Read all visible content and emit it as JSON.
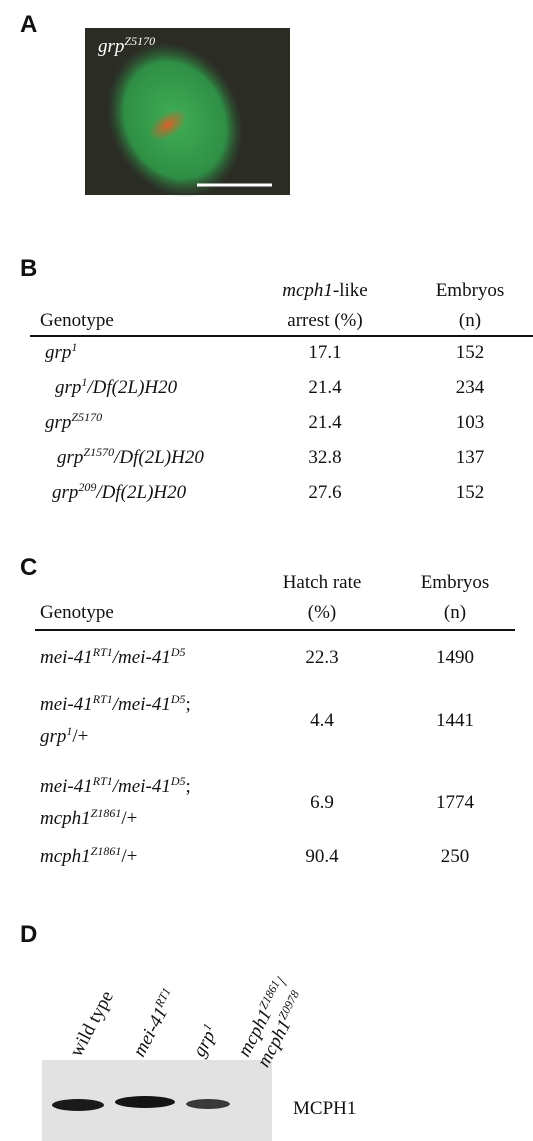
{
  "panel_a": {
    "label": "A",
    "caption": [
      [
        {
          "italic": "grp"
        },
        {
          "sup": "Z5170"
        }
      ]
    ]
  },
  "panel_b": {
    "label": "B",
    "headers": [
      [
        [
          {
            "text": "Genotype"
          }
        ]
      ],
      [
        [
          {
            "italic": "mcph1"
          },
          {
            "text": "-like"
          }
        ],
        [
          {
            "text": "arrest (%)"
          }
        ]
      ],
      [
        [
          {
            "text": "Embryos"
          }
        ],
        [
          {
            "text": "(n)"
          }
        ]
      ]
    ],
    "rows": [
      [
        [
          [
            {
              "italic": "grp"
            },
            {
              "sup": "1"
            }
          ]
        ],
        17.1,
        152
      ],
      [
        [
          [
            {
              "italic": "grp"
            },
            {
              "sup": "1"
            },
            {
              "italic": "/Df(2L)H20"
            }
          ]
        ],
        21.4,
        234
      ],
      [
        [
          [
            {
              "italic": "grp"
            },
            {
              "sup": "Z5170"
            }
          ]
        ],
        21.4,
        103
      ],
      [
        [
          [
            {
              "italic": "grp"
            },
            {
              "sup": "Z1570"
            },
            {
              "italic": "/Df(2L)H20"
            }
          ]
        ],
        32.8,
        137
      ],
      [
        [
          [
            {
              "italic": "grp"
            },
            {
              "sup": "209"
            },
            {
              "italic": "/Df(2L)H20"
            }
          ]
        ],
        27.6,
        152
      ]
    ]
  },
  "panel_c": {
    "label": "C",
    "headers": [
      [
        [
          {
            "text": "Genotype"
          }
        ]
      ],
      [
        [
          {
            "text": "Hatch rate"
          }
        ],
        [
          {
            "text": "(%)"
          }
        ]
      ],
      [
        [
          {
            "text": "Embryos"
          }
        ],
        [
          {
            "text": "(n)"
          }
        ]
      ]
    ],
    "rows": [
      [
        [
          [
            {
              "italic": "mei-41"
            },
            {
              "sup": "RT1"
            },
            {
              "italic": "/mei-41"
            },
            {
              "sup": "D5"
            }
          ]
        ],
        22.3,
        1490
      ],
      [
        [
          [
            {
              "italic": "mei-41"
            },
            {
              "sup": "RT1"
            },
            {
              "italic": "/mei-41"
            },
            {
              "sup": "D5"
            },
            {
              "text": ";"
            }
          ],
          [
            {
              "italic": "grp"
            },
            {
              "sup": "1"
            },
            {
              "text": "/+"
            }
          ]
        ],
        4.4,
        1441
      ],
      [
        [
          [
            {
              "italic": "mei-41"
            },
            {
              "sup": "RT1"
            },
            {
              "italic": "/mei-41"
            },
            {
              "sup": "D5"
            },
            {
              "text": ";"
            }
          ],
          [
            {
              "italic": "mcph1"
            },
            {
              "sup": "Z1861"
            },
            {
              "text": "/+"
            }
          ]
        ],
        6.9,
        1774
      ],
      [
        [
          [
            {
              "italic": "mcph1"
            },
            {
              "sup": "Z1861"
            },
            {
              "text": "/+"
            }
          ]
        ],
        90.4,
        250
      ]
    ]
  },
  "panel_d": {
    "label": "D",
    "lanes": [
      [
        [
          {
            "text": "wild type"
          }
        ]
      ],
      [
        [
          {
            "italic": "mei-41"
          },
          {
            "sup": "RT1"
          }
        ]
      ],
      [
        [
          {
            "italic": "grp"
          },
          {
            "sup": "1"
          }
        ]
      ],
      [
        [
          {
            "italic": "mcph1"
          },
          {
            "sup": "Z1861"
          },
          {
            "text": "/"
          }
        ],
        [
          {
            "italic": "mcph1"
          },
          {
            "sup": "Z0978"
          }
        ]
      ]
    ],
    "band_label": "MCPH1"
  }
}
